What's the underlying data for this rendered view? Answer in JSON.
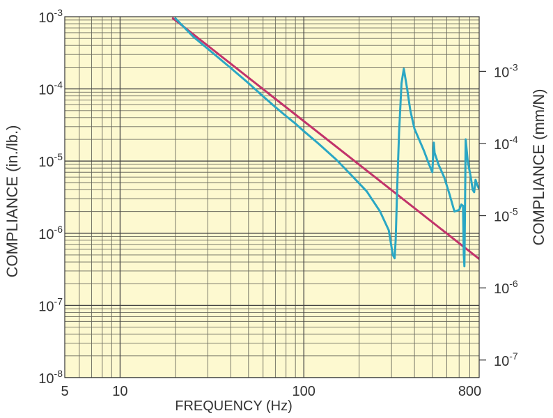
{
  "chart_data": {
    "type": "line",
    "title": "",
    "xlabel": "FREQUENCY (Hz)",
    "ylabel": "COMPLIANCE (in./lb.)",
    "y2label": "COMPLIANCE (mm/N)",
    "xscale": "log",
    "yscale": "log",
    "xlim": [
      5,
      900
    ],
    "ylim": [
      1e-08,
      0.001
    ],
    "y2lim": [
      5.71e-08,
      0.00571
    ],
    "grid": true,
    "background": "#fdf9d0",
    "x_tick_labels": [
      {
        "value": 5,
        "label": "5"
      },
      {
        "value": 10,
        "label": "10"
      },
      {
        "value": 100,
        "label": "100"
      },
      {
        "value": 800,
        "label": "800"
      }
    ],
    "y_tick_labels": [
      {
        "value": 1e-08,
        "base": "10",
        "exp": "-8"
      },
      {
        "value": 1e-07,
        "base": "10",
        "exp": "-7"
      },
      {
        "value": 1e-06,
        "base": "10",
        "exp": "-6"
      },
      {
        "value": 1e-05,
        "base": "10",
        "exp": "-5"
      },
      {
        "value": 0.0001,
        "base": "10",
        "exp": "-4"
      },
      {
        "value": 0.001,
        "base": "10",
        "exp": "-3"
      }
    ],
    "y2_tick_labels": [
      {
        "value": 1e-07,
        "base": "10",
        "exp": "-7"
      },
      {
        "value": 1e-06,
        "base": "10",
        "exp": "-6"
      },
      {
        "value": 1e-05,
        "base": "10",
        "exp": "-5"
      },
      {
        "value": 0.0001,
        "base": "10",
        "exp": "-4"
      },
      {
        "value": 0.001,
        "base": "10",
        "exp": "-3"
      }
    ],
    "series": [
      {
        "color": "#c2336a",
        "x": [
          19.4,
          900
        ],
        "y": [
          0.00095,
          4.4e-07
        ]
      },
      {
        "color": "#2aa7c4",
        "x": [
          20,
          25,
          30,
          40,
          50,
          60,
          70,
          80,
          90,
          100,
          120,
          150,
          180,
          220,
          260,
          290,
          305,
          312,
          316,
          322,
          330,
          340,
          350,
          365,
          380,
          400,
          420,
          450,
          480,
          500,
          505,
          510,
          515,
          540,
          580,
          620,
          660,
          700,
          720,
          735,
          742,
          748,
          752,
          760,
          780,
          810,
          830,
          845,
          860,
          880,
          895
        ],
        "y": [
          0.00095,
          0.00053,
          0.00036,
          0.000195,
          0.00012,
          7.9e-05,
          5.6e-05,
          4.2e-05,
          3.3e-05,
          2.6e-05,
          1.75e-05,
          1.05e-05,
          6.5e-06,
          3.8e-06,
          2e-06,
          1.1e-06,
          5e-07,
          4.5e-07,
          8e-07,
          4e-06,
          2.5e-05,
          0.00012,
          0.00019,
          0.0001,
          5e-05,
          2.8e-05,
          2.1e-05,
          1.4e-05,
          9e-06,
          7e-06,
          1.1e-05,
          1.8e-05,
          1.3e-05,
          9e-06,
          6e-06,
          3.5e-06,
          2e-06,
          2.1e-06,
          2.5e-06,
          2.4e-06,
          5e-07,
          3.5e-07,
          1.2e-06,
          2e-05,
          1e-05,
          6e-06,
          4e-06,
          3.7e-06,
          5.5e-06,
          4.6e-06,
          4.2e-06
        ]
      }
    ]
  }
}
